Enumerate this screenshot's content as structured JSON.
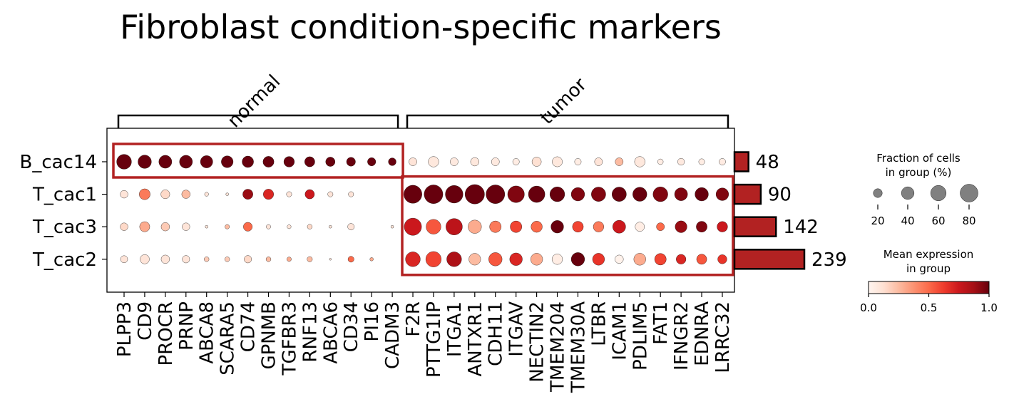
{
  "chart_data": {
    "type": "dotplot",
    "title": "Fibroblast condition-specific markers",
    "groups": [
      "B_cac14",
      "T_cac1",
      "T_cac3",
      "T_cac2"
    ],
    "genes": [
      "PLPP3",
      "CD9",
      "PROCR",
      "PRNP",
      "ABCA8",
      "SCARA5",
      "CD74",
      "GPNMB",
      "TGFBR3",
      "RNF13",
      "ABCA6",
      "CD34",
      "PI16",
      "CADM3",
      "F2R",
      "PTTG1IP",
      "ITGA1",
      "ANTXR1",
      "CDH11",
      "ITGAV",
      "NECTIN2",
      "TMEM204",
      "TMEM30A",
      "LTBR",
      "ICAM1",
      "PDLIM5",
      "FAT1",
      "IFNGR2",
      "EDNRA",
      "LRRC32"
    ],
    "gene_groups": [
      {
        "label": "normal",
        "start": 0,
        "end": 13
      },
      {
        "label": "tumor",
        "start": 14,
        "end": 29
      }
    ],
    "highlight_boxes": [
      {
        "rows": [
          0,
          0
        ],
        "cols": [
          0,
          13
        ]
      },
      {
        "rows": [
          1,
          3
        ],
        "cols": [
          14,
          29
        ]
      }
    ],
    "cell_counts": [
      48,
      90,
      142,
      239
    ],
    "fraction": [
      [
        55,
        45,
        42,
        42,
        38,
        35,
        33,
        30,
        28,
        26,
        22,
        20,
        17,
        15,
        16,
        28,
        16,
        18,
        16,
        11,
        22,
        26,
        11,
        16,
        16,
        28,
        8,
        12,
        9,
        11
      ],
      [
        15,
        30,
        20,
        18,
        4,
        2,
        26,
        27,
        7,
        22,
        7,
        7,
        0,
        0,
        82,
        88,
        78,
        95,
        88,
        70,
        68,
        55,
        45,
        52,
        52,
        50,
        55,
        42,
        45,
        40
      ],
      [
        15,
        26,
        18,
        15,
        2,
        5,
        20,
        5,
        4,
        6,
        2,
        11,
        0,
        2,
        75,
        55,
        68,
        45,
        34,
        34,
        32,
        40,
        30,
        28,
        42,
        22,
        16,
        35,
        30,
        28
      ],
      [
        13,
        22,
        18,
        14,
        6,
        6,
        14,
        6,
        5,
        7,
        1,
        9,
        3,
        0,
        55,
        60,
        55,
        35,
        45,
        40,
        36,
        28,
        45,
        36,
        18,
        36,
        34,
        24,
        26,
        21
      ]
    ],
    "mean_expression": [
      [
        1,
        1,
        1,
        1,
        1,
        1,
        1,
        1,
        1,
        1,
        1,
        1,
        1,
        1,
        0.1,
        0.08,
        0.07,
        0.08,
        0.07,
        0.05,
        0.12,
        0.08,
        0.05,
        0.1,
        0.25,
        0.08,
        0.05,
        0.07,
        0.05,
        0.06
      ],
      [
        0.1,
        0.45,
        0.15,
        0.25,
        0.1,
        0.1,
        0.9,
        0.7,
        0.1,
        0.75,
        0.1,
        0.1,
        0,
        0,
        1,
        1,
        1,
        1,
        1,
        0.95,
        1,
        1,
        0.95,
        0.95,
        1,
        1,
        0.95,
        0.95,
        1,
        0.95
      ],
      [
        0.15,
        0.3,
        0.2,
        0.1,
        0.1,
        0.25,
        0.5,
        0.1,
        0.1,
        0.15,
        0.1,
        0.1,
        0,
        0.1,
        0.75,
        0.55,
        0.8,
        0.3,
        0.45,
        0.6,
        0.5,
        1,
        0.6,
        0.45,
        0.75,
        0.05,
        0.5,
        0.9,
        0.95,
        0.75
      ],
      [
        0.1,
        0.1,
        0.1,
        0.1,
        0.2,
        0.2,
        0.15,
        0.25,
        0.3,
        0.25,
        0.1,
        0.5,
        0.3,
        0,
        0.7,
        0.6,
        0.85,
        0.25,
        0.55,
        0.7,
        0.3,
        0.05,
        1,
        0.65,
        0.02,
        0.3,
        0.6,
        0.7,
        0.55,
        0.65
      ]
    ],
    "size_legend": {
      "title": "Fraction of cells in group (%)",
      "ticks": [
        20,
        40,
        60,
        80
      ]
    },
    "color_legend": {
      "title": "Mean expression in group",
      "ticks": [
        "0.0",
        "0.5",
        "1.0"
      ],
      "range": [
        0,
        1
      ],
      "colormap": "Reds"
    }
  },
  "size_legend_title_lines": [
    "Fraction of cells",
    "in group (%)"
  ],
  "color_legend_title_lines": [
    "Mean expression",
    "in group"
  ],
  "colors": {
    "highlight_box": "#b22222",
    "count_bar": "#b22222",
    "reds": [
      "#fff5f0",
      "#fee0d2",
      "#fcbba1",
      "#fc9272",
      "#fb6a4a",
      "#ef3b2c",
      "#cb181d",
      "#a50f15",
      "#67000d"
    ],
    "size_legend_dot": "#808080"
  }
}
